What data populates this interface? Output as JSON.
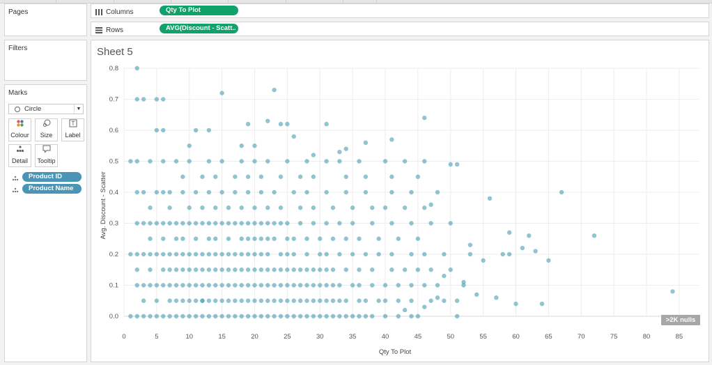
{
  "panels": {
    "pages": {
      "title": "Pages"
    },
    "filters": {
      "title": "Filters"
    },
    "marks": {
      "title": "Marks",
      "mark_type": "Circle",
      "buttons": [
        "Colour",
        "Size",
        "Label",
        "Detail",
        "Tooltip"
      ],
      "fields": [
        "Product ID",
        "Product Name"
      ]
    }
  },
  "shelves": {
    "columns": {
      "label": "Columns",
      "pill": "Qty To Plot"
    },
    "rows": {
      "label": "Rows",
      "pill": "AVG(Discount - Scatt.."
    }
  },
  "sheet": {
    "title": "Sheet 5"
  },
  "nulls_badge": ">2K nulls",
  "colors": {
    "mark": "#4e9fb3",
    "pill_green": "#0fa36b",
    "pill_blue": "#4a95b5"
  },
  "chart_data": {
    "type": "scatter",
    "xlabel": "Qty To Plot",
    "ylabel": "Avg. Discount - Scatter",
    "xlim": [
      0,
      88
    ],
    "ylim": [
      0,
      0.8
    ],
    "x_ticks": [
      0,
      5,
      10,
      15,
      20,
      25,
      30,
      35,
      40,
      45,
      50,
      55,
      60,
      65,
      70,
      75,
      80,
      85
    ],
    "y_ticks": [
      "0.0",
      "0.1",
      "0.2",
      "0.3",
      "0.4",
      "0.5",
      "0.6",
      "0.7",
      "0.8"
    ],
    "grid": true,
    "points": [
      [
        1,
        0
      ],
      [
        2,
        0
      ],
      [
        3,
        0
      ],
      [
        4,
        0
      ],
      [
        5,
        0
      ],
      [
        6,
        0
      ],
      [
        7,
        0
      ],
      [
        8,
        0
      ],
      [
        9,
        0
      ],
      [
        10,
        0
      ],
      [
        11,
        0
      ],
      [
        12,
        0
      ],
      [
        13,
        0
      ],
      [
        14,
        0
      ],
      [
        15,
        0
      ],
      [
        16,
        0
      ],
      [
        17,
        0
      ],
      [
        18,
        0
      ],
      [
        19,
        0
      ],
      [
        20,
        0
      ],
      [
        21,
        0
      ],
      [
        22,
        0
      ],
      [
        23,
        0
      ],
      [
        24,
        0
      ],
      [
        25,
        0
      ],
      [
        26,
        0
      ],
      [
        27,
        0
      ],
      [
        28,
        0
      ],
      [
        29,
        0
      ],
      [
        30,
        0
      ],
      [
        31,
        0
      ],
      [
        32,
        0
      ],
      [
        33,
        0
      ],
      [
        34,
        0
      ],
      [
        35,
        0
      ],
      [
        36,
        0
      ],
      [
        37,
        0
      ],
      [
        38,
        0
      ],
      [
        40,
        0
      ],
      [
        42,
        0
      ],
      [
        44,
        0
      ],
      [
        45,
        0
      ],
      [
        51,
        0
      ],
      [
        2,
        0.1
      ],
      [
        3,
        0.1
      ],
      [
        4,
        0.1
      ],
      [
        5,
        0.1
      ],
      [
        6,
        0.1
      ],
      [
        7,
        0.1
      ],
      [
        8,
        0.1
      ],
      [
        9,
        0.1
      ],
      [
        10,
        0.1
      ],
      [
        11,
        0.1
      ],
      [
        12,
        0.1
      ],
      [
        13,
        0.1
      ],
      [
        14,
        0.1
      ],
      [
        15,
        0.1
      ],
      [
        16,
        0.1
      ],
      [
        17,
        0.1
      ],
      [
        18,
        0.1
      ],
      [
        19,
        0.1
      ],
      [
        20,
        0.1
      ],
      [
        21,
        0.1
      ],
      [
        22,
        0.1
      ],
      [
        23,
        0.1
      ],
      [
        24,
        0.1
      ],
      [
        25,
        0.1
      ],
      [
        26,
        0.1
      ],
      [
        27,
        0.1
      ],
      [
        28,
        0.1
      ],
      [
        29,
        0.1
      ],
      [
        30,
        0.1
      ],
      [
        31,
        0.1
      ],
      [
        32,
        0.1
      ],
      [
        33,
        0.1
      ],
      [
        35,
        0.1
      ],
      [
        36,
        0.1
      ],
      [
        38,
        0.1
      ],
      [
        40,
        0.1
      ],
      [
        42,
        0.1
      ],
      [
        44,
        0.1
      ],
      [
        46,
        0.1
      ],
      [
        48,
        0.1
      ],
      [
        52,
        0.1
      ],
      [
        1,
        0.2
      ],
      [
        2,
        0.2
      ],
      [
        3,
        0.2
      ],
      [
        4,
        0.2
      ],
      [
        5,
        0.2
      ],
      [
        6,
        0.2
      ],
      [
        7,
        0.2
      ],
      [
        8,
        0.2
      ],
      [
        9,
        0.2
      ],
      [
        10,
        0.2
      ],
      [
        11,
        0.2
      ],
      [
        12,
        0.2
      ],
      [
        13,
        0.2
      ],
      [
        14,
        0.2
      ],
      [
        15,
        0.2
      ],
      [
        16,
        0.2
      ],
      [
        17,
        0.2
      ],
      [
        18,
        0.2
      ],
      [
        19,
        0.2
      ],
      [
        20,
        0.2
      ],
      [
        21,
        0.2
      ],
      [
        22,
        0.2
      ],
      [
        24,
        0.2
      ],
      [
        25,
        0.2
      ],
      [
        26,
        0.2
      ],
      [
        28,
        0.2
      ],
      [
        30,
        0.2
      ],
      [
        31,
        0.2
      ],
      [
        33,
        0.2
      ],
      [
        35,
        0.2
      ],
      [
        37,
        0.2
      ],
      [
        39,
        0.2
      ],
      [
        41,
        0.2
      ],
      [
        44,
        0.2
      ],
      [
        46,
        0.2
      ],
      [
        49,
        0.2
      ],
      [
        53,
        0.2
      ],
      [
        59,
        0.2
      ],
      [
        2,
        0.15
      ],
      [
        4,
        0.15
      ],
      [
        6,
        0.15
      ],
      [
        7,
        0.15
      ],
      [
        8,
        0.15
      ],
      [
        9,
        0.15
      ],
      [
        10,
        0.15
      ],
      [
        11,
        0.15
      ],
      [
        12,
        0.15
      ],
      [
        13,
        0.15
      ],
      [
        14,
        0.15
      ],
      [
        15,
        0.15
      ],
      [
        16,
        0.15
      ],
      [
        17,
        0.15
      ],
      [
        18,
        0.15
      ],
      [
        19,
        0.15
      ],
      [
        20,
        0.15
      ],
      [
        21,
        0.15
      ],
      [
        22,
        0.15
      ],
      [
        23,
        0.15
      ],
      [
        24,
        0.15
      ],
      [
        25,
        0.15
      ],
      [
        26,
        0.15
      ],
      [
        27,
        0.15
      ],
      [
        28,
        0.15
      ],
      [
        29,
        0.15
      ],
      [
        30,
        0.15
      ],
      [
        31,
        0.15
      ],
      [
        32,
        0.15
      ],
      [
        34,
        0.15
      ],
      [
        36,
        0.15
      ],
      [
        38,
        0.15
      ],
      [
        41,
        0.15
      ],
      [
        43,
        0.15
      ],
      [
        45,
        0.15
      ],
      [
        47,
        0.15
      ],
      [
        50,
        0.15
      ],
      [
        3,
        0.05
      ],
      [
        5,
        0.05
      ],
      [
        7,
        0.05
      ],
      [
        8,
        0.05
      ],
      [
        9,
        0.05
      ],
      [
        10,
        0.05
      ],
      [
        11,
        0.05
      ],
      [
        12,
        0.05
      ],
      [
        13,
        0.05
      ],
      [
        14,
        0.05
      ],
      [
        15,
        0.05
      ],
      [
        16,
        0.05
      ],
      [
        17,
        0.05
      ],
      [
        18,
        0.05
      ],
      [
        19,
        0.05
      ],
      [
        20,
        0.05
      ],
      [
        21,
        0.05
      ],
      [
        22,
        0.05
      ],
      [
        23,
        0.05
      ],
      [
        24,
        0.05
      ],
      [
        25,
        0.05
      ],
      [
        26,
        0.05
      ],
      [
        27,
        0.05
      ],
      [
        28,
        0.05
      ],
      [
        29,
        0.05
      ],
      [
        30,
        0.05
      ],
      [
        31,
        0.05
      ],
      [
        32,
        0.05
      ],
      [
        33,
        0.05
      ],
      [
        34,
        0.05
      ],
      [
        36,
        0.05
      ],
      [
        37,
        0.05
      ],
      [
        39,
        0.05
      ],
      [
        40,
        0.05
      ],
      [
        42,
        0.05
      ],
      [
        44,
        0.05
      ],
      [
        47,
        0.05
      ],
      [
        49,
        0.05
      ],
      [
        51,
        0.05
      ],
      [
        2,
        0.3
      ],
      [
        3,
        0.3
      ],
      [
        4,
        0.3
      ],
      [
        5,
        0.3
      ],
      [
        6,
        0.3
      ],
      [
        7,
        0.3
      ],
      [
        8,
        0.3
      ],
      [
        9,
        0.3
      ],
      [
        10,
        0.3
      ],
      [
        11,
        0.3
      ],
      [
        12,
        0.3
      ],
      [
        13,
        0.3
      ],
      [
        14,
        0.3
      ],
      [
        15,
        0.3
      ],
      [
        16,
        0.3
      ],
      [
        17,
        0.3
      ],
      [
        18,
        0.3
      ],
      [
        19,
        0.3
      ],
      [
        20,
        0.3
      ],
      [
        21,
        0.3
      ],
      [
        22,
        0.3
      ],
      [
        23,
        0.3
      ],
      [
        24,
        0.3
      ],
      [
        25,
        0.3
      ],
      [
        27,
        0.3
      ],
      [
        29,
        0.3
      ],
      [
        31,
        0.3
      ],
      [
        33,
        0.3
      ],
      [
        35,
        0.3
      ],
      [
        38,
        0.3
      ],
      [
        41,
        0.3
      ],
      [
        44,
        0.3
      ],
      [
        47,
        0.3
      ],
      [
        50,
        0.3
      ],
      [
        4,
        0.25
      ],
      [
        6,
        0.25
      ],
      [
        8,
        0.25
      ],
      [
        9,
        0.25
      ],
      [
        11,
        0.25
      ],
      [
        13,
        0.25
      ],
      [
        14,
        0.25
      ],
      [
        16,
        0.25
      ],
      [
        18,
        0.25
      ],
      [
        19,
        0.25
      ],
      [
        20,
        0.25
      ],
      [
        21,
        0.25
      ],
      [
        22,
        0.25
      ],
      [
        23,
        0.25
      ],
      [
        25,
        0.25
      ],
      [
        26,
        0.25
      ],
      [
        28,
        0.25
      ],
      [
        30,
        0.25
      ],
      [
        32,
        0.25
      ],
      [
        34,
        0.25
      ],
      [
        36,
        0.25
      ],
      [
        39,
        0.25
      ],
      [
        42,
        0.25
      ],
      [
        45,
        0.25
      ],
      [
        2,
        0.4
      ],
      [
        3,
        0.4
      ],
      [
        5,
        0.4
      ],
      [
        6,
        0.4
      ],
      [
        7,
        0.4
      ],
      [
        9,
        0.4
      ],
      [
        11,
        0.4
      ],
      [
        13,
        0.4
      ],
      [
        15,
        0.4
      ],
      [
        17,
        0.4
      ],
      [
        19,
        0.4
      ],
      [
        21,
        0.4
      ],
      [
        23,
        0.4
      ],
      [
        26,
        0.4
      ],
      [
        28,
        0.4
      ],
      [
        31,
        0.4
      ],
      [
        34,
        0.4
      ],
      [
        37,
        0.4
      ],
      [
        41,
        0.4
      ],
      [
        44,
        0.4
      ],
      [
        48,
        0.4
      ],
      [
        56,
        0.38
      ],
      [
        67,
        0.4
      ],
      [
        4,
        0.35
      ],
      [
        7,
        0.35
      ],
      [
        10,
        0.35
      ],
      [
        12,
        0.35
      ],
      [
        14,
        0.35
      ],
      [
        16,
        0.35
      ],
      [
        18,
        0.35
      ],
      [
        20,
        0.35
      ],
      [
        22,
        0.35
      ],
      [
        24,
        0.35
      ],
      [
        27,
        0.35
      ],
      [
        29,
        0.35
      ],
      [
        32,
        0.35
      ],
      [
        35,
        0.35
      ],
      [
        38,
        0.35
      ],
      [
        40,
        0.35
      ],
      [
        43,
        0.35
      ],
      [
        46,
        0.35
      ],
      [
        1,
        0.5
      ],
      [
        2,
        0.5
      ],
      [
        4,
        0.5
      ],
      [
        6,
        0.5
      ],
      [
        8,
        0.5
      ],
      [
        10,
        0.5
      ],
      [
        13,
        0.5
      ],
      [
        15,
        0.5
      ],
      [
        18,
        0.5
      ],
      [
        20,
        0.5
      ],
      [
        22,
        0.5
      ],
      [
        25,
        0.5
      ],
      [
        28,
        0.5
      ],
      [
        31,
        0.5
      ],
      [
        33,
        0.5
      ],
      [
        36,
        0.5
      ],
      [
        40,
        0.5
      ],
      [
        43,
        0.5
      ],
      [
        46,
        0.5
      ],
      [
        50,
        0.49
      ],
      [
        51,
        0.49
      ],
      [
        9,
        0.45
      ],
      [
        12,
        0.45
      ],
      [
        14,
        0.45
      ],
      [
        17,
        0.45
      ],
      [
        19,
        0.45
      ],
      [
        21,
        0.45
      ],
      [
        24,
        0.45
      ],
      [
        27,
        0.45
      ],
      [
        29,
        0.45
      ],
      [
        34,
        0.45
      ],
      [
        37,
        0.45
      ],
      [
        41,
        0.45
      ],
      [
        45,
        0.45
      ],
      [
        2,
        0.7
      ],
      [
        3,
        0.7
      ],
      [
        5,
        0.7
      ],
      [
        6,
        0.7
      ],
      [
        2,
        0.8
      ],
      [
        15,
        0.72
      ],
      [
        23,
        0.73
      ],
      [
        5,
        0.6
      ],
      [
        6,
        0.6
      ],
      [
        11,
        0.6
      ],
      [
        13,
        0.6
      ],
      [
        19,
        0.62
      ],
      [
        22,
        0.63
      ],
      [
        24,
        0.62
      ],
      [
        25,
        0.62
      ],
      [
        31,
        0.62
      ],
      [
        46,
        0.64
      ],
      [
        37,
        0.56
      ],
      [
        41,
        0.57
      ],
      [
        18,
        0.55
      ],
      [
        20,
        0.55
      ],
      [
        26,
        0.58
      ],
      [
        29,
        0.52
      ],
      [
        33,
        0.53
      ],
      [
        34,
        0.54
      ],
      [
        10,
        0.55
      ],
      [
        12,
        0.05
      ],
      [
        58,
        0.2
      ],
      [
        62,
        0.26
      ],
      [
        59,
        0.27
      ],
      [
        61,
        0.22
      ],
      [
        65,
        0.18
      ],
      [
        72,
        0.26
      ],
      [
        54,
        0.07
      ],
      [
        57,
        0.06
      ],
      [
        60,
        0.04
      ],
      [
        64,
        0.04
      ],
      [
        84,
        0.08
      ],
      [
        55,
        0.18
      ],
      [
        63,
        0.21
      ],
      [
        53,
        0.23
      ],
      [
        47,
        0.36
      ],
      [
        52,
        0.11
      ],
      [
        49,
        0.13
      ],
      [
        48,
        0.06
      ],
      [
        46,
        0.03
      ],
      [
        43,
        0.02
      ]
    ]
  }
}
